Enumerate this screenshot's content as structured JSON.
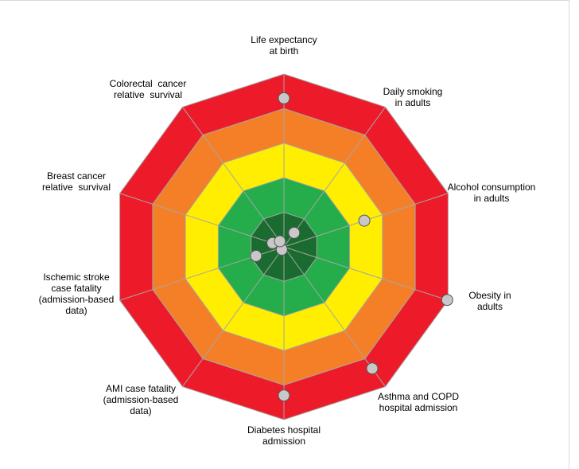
{
  "chart_data": {
    "type": "radar",
    "ring_colors": [
      "#1a6b30",
      "#24ad4a",
      "#ffee00",
      "#f57f27",
      "#ed1b2a"
    ],
    "axes": [
      {
        "label": [
          "Life expectancy",
          "at birth"
        ],
        "value": 0.86
      },
      {
        "label": [
          "Daily smoking",
          "in adults"
        ],
        "value": 0.1
      },
      {
        "label": [
          "Alcohol consumption",
          "in adults"
        ],
        "value": 0.49
      },
      {
        "label": [
          "Obesity in",
          "adults"
        ],
        "value": 0.995
      },
      {
        "label": [
          "Asthma and COPD",
          "hospital admission"
        ],
        "value": 0.87
      },
      {
        "label": [
          "Diabetes hospital",
          "admission"
        ],
        "value": 0.86
      },
      {
        "label": [
          "AMI case fatality",
          "(admission-based",
          "data)"
        ],
        "value": 0.02
      },
      {
        "label": [
          "Ischemic stroke",
          "case fatality",
          "(admission-based",
          "data)"
        ],
        "value": 0.17
      },
      {
        "label": [
          "Breast cancer",
          "relative  survival"
        ],
        "value": 0.07
      },
      {
        "label": [
          "Colorectal  cancer",
          "relative  survival"
        ],
        "value": 0.04
      }
    ],
    "marker_color": "#c8c8c8",
    "marker_stroke": "#555555"
  }
}
